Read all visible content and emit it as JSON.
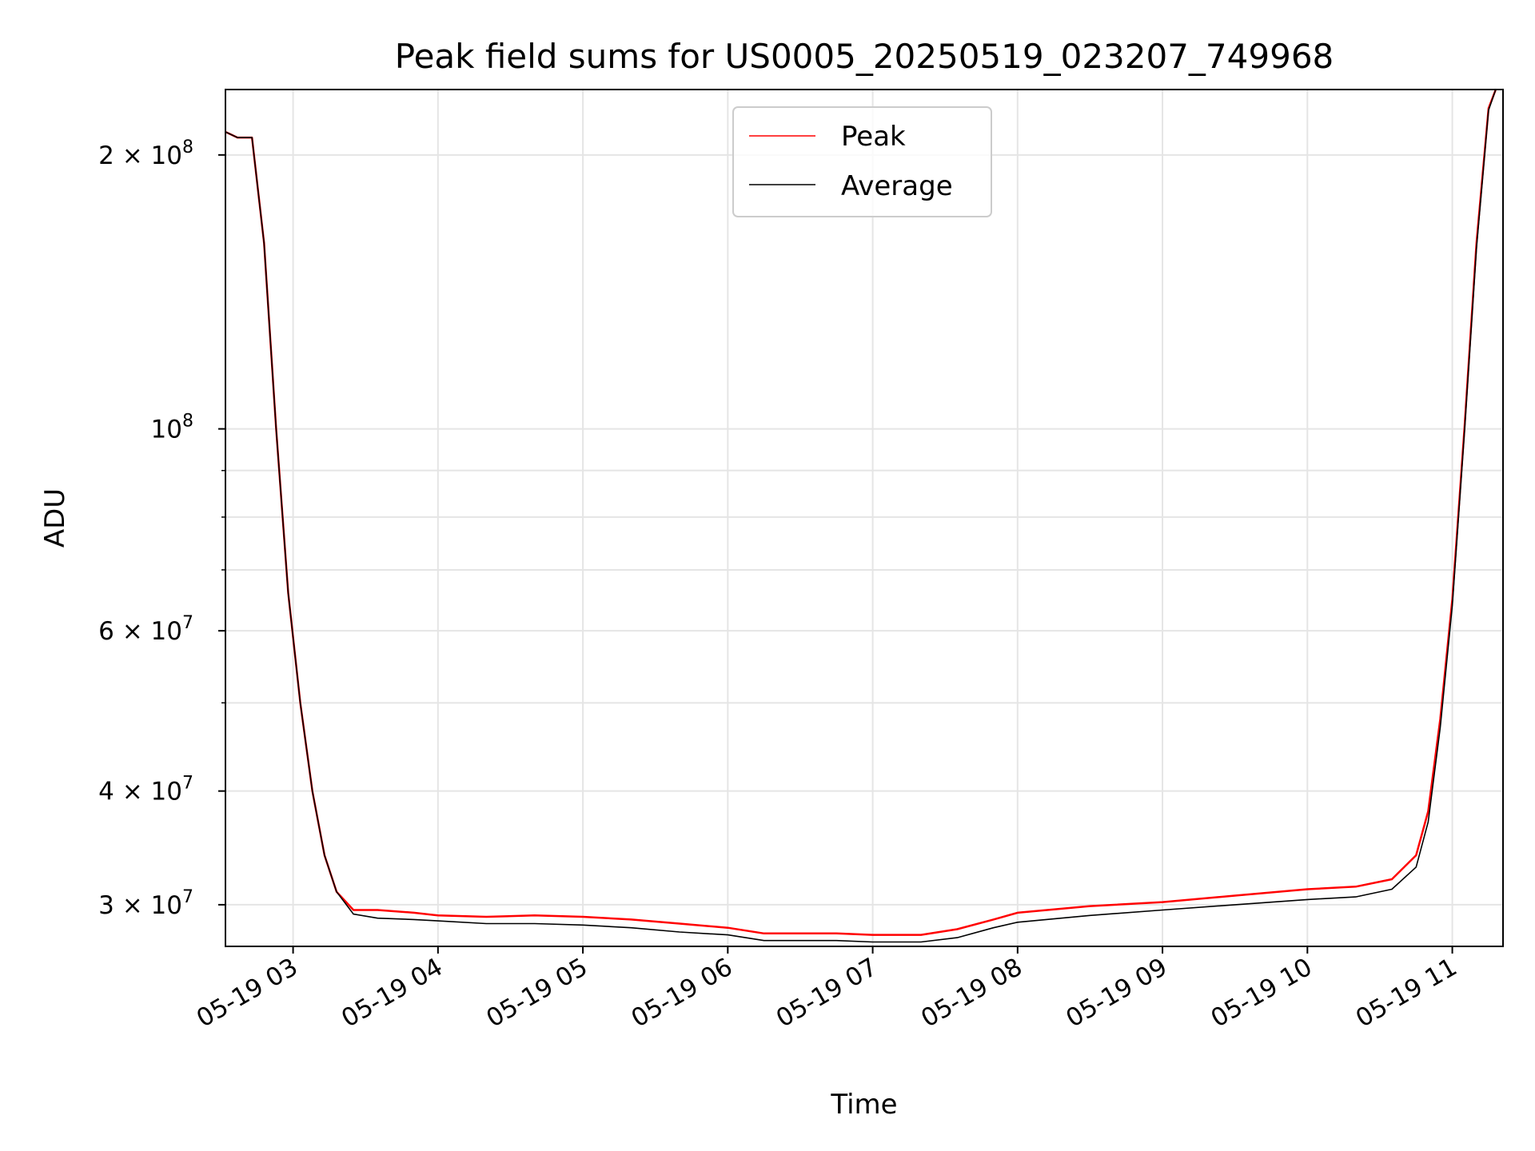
{
  "chart_data": {
    "type": "line",
    "title": "Peak field sums for US0005_20250519_023207_749968",
    "xlabel": "Time",
    "ylabel": "ADU",
    "x_axis": {
      "type": "datetime",
      "range": [
        "2025-05-19 02:32",
        "2025-05-19 11:21"
      ],
      "ticks": [
        {
          "value": "2025-05-19 03:00",
          "label": "05-19 03"
        },
        {
          "value": "2025-05-19 04:00",
          "label": "05-19 04"
        },
        {
          "value": "2025-05-19 05:00",
          "label": "05-19 05"
        },
        {
          "value": "2025-05-19 06:00",
          "label": "05-19 06"
        },
        {
          "value": "2025-05-19 07:00",
          "label": "05-19 07"
        },
        {
          "value": "2025-05-19 08:00",
          "label": "05-19 08"
        },
        {
          "value": "2025-05-19 09:00",
          "label": "05-19 09"
        },
        {
          "value": "2025-05-19 10:00",
          "label": "05-19 10"
        },
        {
          "value": "2025-05-19 11:00",
          "label": "05-19 11"
        }
      ]
    },
    "y_axis": {
      "scale": "log",
      "range": [
        27000000,
        236000000
      ],
      "major_ticks": [
        {
          "value": 30000000,
          "mant": "3",
          "exp": "7"
        },
        {
          "value": 40000000,
          "mant": "4",
          "exp": "7"
        },
        {
          "value": 60000000,
          "mant": "6",
          "exp": "7"
        },
        {
          "value": 100000000,
          "mant": "",
          "exp": "8"
        },
        {
          "value": 200000000,
          "mant": "2",
          "exp": "8"
        }
      ],
      "minor_ticks": [
        50000000,
        70000000,
        80000000,
        90000000
      ]
    },
    "grid": true,
    "legend": {
      "position": "top-center"
    },
    "series": [
      {
        "name": "Peak",
        "color": "#ff0000",
        "points": [
          [
            "2025-05-19 02:32",
            212000000
          ],
          [
            "2025-05-19 02:37",
            209000000
          ],
          [
            "2025-05-19 02:43",
            209000000
          ],
          [
            "2025-05-19 02:48",
            160000000
          ],
          [
            "2025-05-19 02:53",
            100000000
          ],
          [
            "2025-05-19 02:58",
            66000000
          ],
          [
            "2025-05-19 03:03",
            50000000
          ],
          [
            "2025-05-19 03:08",
            40000000
          ],
          [
            "2025-05-19 03:13",
            34000000
          ],
          [
            "2025-05-19 03:18",
            31000000
          ],
          [
            "2025-05-19 03:25",
            29600000
          ],
          [
            "2025-05-19 03:35",
            29600000
          ],
          [
            "2025-05-19 03:50",
            29400000
          ],
          [
            "2025-05-19 04:00",
            29200000
          ],
          [
            "2025-05-19 04:20",
            29100000
          ],
          [
            "2025-05-19 04:40",
            29200000
          ],
          [
            "2025-05-19 05:00",
            29100000
          ],
          [
            "2025-05-19 05:20",
            28900000
          ],
          [
            "2025-05-19 05:40",
            28600000
          ],
          [
            "2025-05-19 06:00",
            28300000
          ],
          [
            "2025-05-19 06:15",
            27900000
          ],
          [
            "2025-05-19 06:30",
            27900000
          ],
          [
            "2025-05-19 06:45",
            27900000
          ],
          [
            "2025-05-19 07:00",
            27800000
          ],
          [
            "2025-05-19 07:20",
            27800000
          ],
          [
            "2025-05-19 07:35",
            28200000
          ],
          [
            "2025-05-19 07:50",
            28900000
          ],
          [
            "2025-05-19 08:00",
            29400000
          ],
          [
            "2025-05-19 08:30",
            29900000
          ],
          [
            "2025-05-19 09:00",
            30200000
          ],
          [
            "2025-05-19 09:30",
            30700000
          ],
          [
            "2025-05-19 10:00",
            31200000
          ],
          [
            "2025-05-19 10:20",
            31400000
          ],
          [
            "2025-05-19 10:35",
            32000000
          ],
          [
            "2025-05-19 10:45",
            34000000
          ],
          [
            "2025-05-19 10:50",
            38000000
          ],
          [
            "2025-05-19 10:55",
            48000000
          ],
          [
            "2025-05-19 11:00",
            65000000
          ],
          [
            "2025-05-19 11:05",
            100000000
          ],
          [
            "2025-05-19 11:10",
            160000000
          ],
          [
            "2025-05-19 11:15",
            225000000
          ],
          [
            "2025-05-19 11:18",
            236000000
          ]
        ]
      },
      {
        "name": "Average",
        "color": "#000000",
        "points": [
          [
            "2025-05-19 02:32",
            212000000
          ],
          [
            "2025-05-19 02:37",
            209000000
          ],
          [
            "2025-05-19 02:43",
            209000000
          ],
          [
            "2025-05-19 02:48",
            160000000
          ],
          [
            "2025-05-19 02:53",
            100000000
          ],
          [
            "2025-05-19 02:58",
            66000000
          ],
          [
            "2025-05-19 03:03",
            50000000
          ],
          [
            "2025-05-19 03:08",
            40000000
          ],
          [
            "2025-05-19 03:13",
            34000000
          ],
          [
            "2025-05-19 03:18",
            31000000
          ],
          [
            "2025-05-19 03:25",
            29300000
          ],
          [
            "2025-05-19 03:35",
            29000000
          ],
          [
            "2025-05-19 03:50",
            28900000
          ],
          [
            "2025-05-19 04:00",
            28800000
          ],
          [
            "2025-05-19 04:20",
            28600000
          ],
          [
            "2025-05-19 04:40",
            28600000
          ],
          [
            "2025-05-19 05:00",
            28500000
          ],
          [
            "2025-05-19 05:20",
            28300000
          ],
          [
            "2025-05-19 05:40",
            28000000
          ],
          [
            "2025-05-19 06:00",
            27800000
          ],
          [
            "2025-05-19 06:15",
            27400000
          ],
          [
            "2025-05-19 06:30",
            27400000
          ],
          [
            "2025-05-19 06:45",
            27400000
          ],
          [
            "2025-05-19 07:00",
            27300000
          ],
          [
            "2025-05-19 07:20",
            27300000
          ],
          [
            "2025-05-19 07:35",
            27600000
          ],
          [
            "2025-05-19 07:50",
            28300000
          ],
          [
            "2025-05-19 08:00",
            28700000
          ],
          [
            "2025-05-19 08:30",
            29200000
          ],
          [
            "2025-05-19 09:00",
            29600000
          ],
          [
            "2025-05-19 09:30",
            30000000
          ],
          [
            "2025-05-19 10:00",
            30400000
          ],
          [
            "2025-05-19 10:20",
            30600000
          ],
          [
            "2025-05-19 10:35",
            31200000
          ],
          [
            "2025-05-19 10:45",
            33000000
          ],
          [
            "2025-05-19 10:50",
            37000000
          ],
          [
            "2025-05-19 10:55",
            47000000
          ],
          [
            "2025-05-19 11:00",
            64000000
          ],
          [
            "2025-05-19 11:05",
            99000000
          ],
          [
            "2025-05-19 11:10",
            158000000
          ],
          [
            "2025-05-19 11:15",
            224000000
          ],
          [
            "2025-05-19 11:18",
            236000000
          ]
        ]
      }
    ]
  }
}
